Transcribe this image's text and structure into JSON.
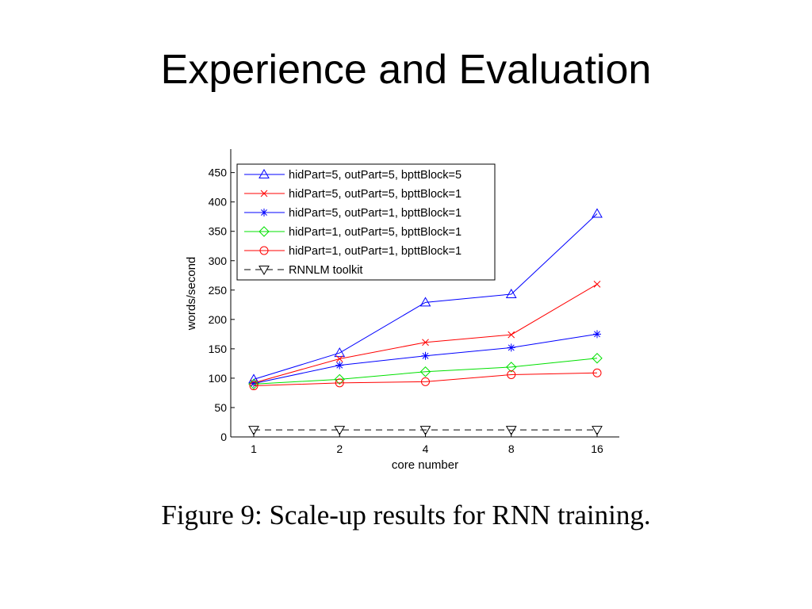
{
  "slide": {
    "title": "Experience and Evaluation",
    "caption": "Figure 9: Scale-up results for RNN training."
  },
  "chart_data": {
    "type": "line",
    "xlabel": "core number",
    "ylabel": "words/second",
    "x": [
      1,
      2,
      4,
      8,
      16
    ],
    "x_ticks": [
      "1",
      "2",
      "4",
      "8",
      "16"
    ],
    "ylim": [
      0,
      490
    ],
    "y_ticks": [
      0,
      50,
      100,
      150,
      200,
      250,
      300,
      350,
      400,
      450
    ],
    "grid": false,
    "legend_position": "top-left",
    "series": [
      {
        "name": "hidPart=5, outPart=5, bpttBlock=5",
        "values": [
          98,
          143,
          229,
          243,
          380
        ],
        "color": "#0000ff",
        "marker": "triangle-up",
        "dash": "solid"
      },
      {
        "name": "hidPart=5, outPart=5, bpttBlock=1",
        "values": [
          92,
          133,
          161,
          174,
          260
        ],
        "color": "#ff0000",
        "marker": "x",
        "dash": "solid"
      },
      {
        "name": "hidPart=5, outPart=1, bpttBlock=1",
        "values": [
          91,
          122,
          138,
          152,
          175
        ],
        "color": "#0000ff",
        "marker": "star",
        "dash": "solid"
      },
      {
        "name": "hidPart=1, outPart=5, bpttBlock=1",
        "values": [
          90,
          98,
          111,
          119,
          134
        ],
        "color": "#00e000",
        "marker": "diamond",
        "dash": "solid"
      },
      {
        "name": "hidPart=1, outPart=1, bpttBlock=1",
        "values": [
          87,
          92,
          94,
          106,
          109
        ],
        "color": "#ff0000",
        "marker": "circle",
        "dash": "solid"
      },
      {
        "name": "RNNLM toolkit",
        "values": [
          12,
          12,
          12,
          12,
          12
        ],
        "color": "#000000",
        "marker": "triangle-down",
        "dash": "dashed"
      }
    ]
  }
}
